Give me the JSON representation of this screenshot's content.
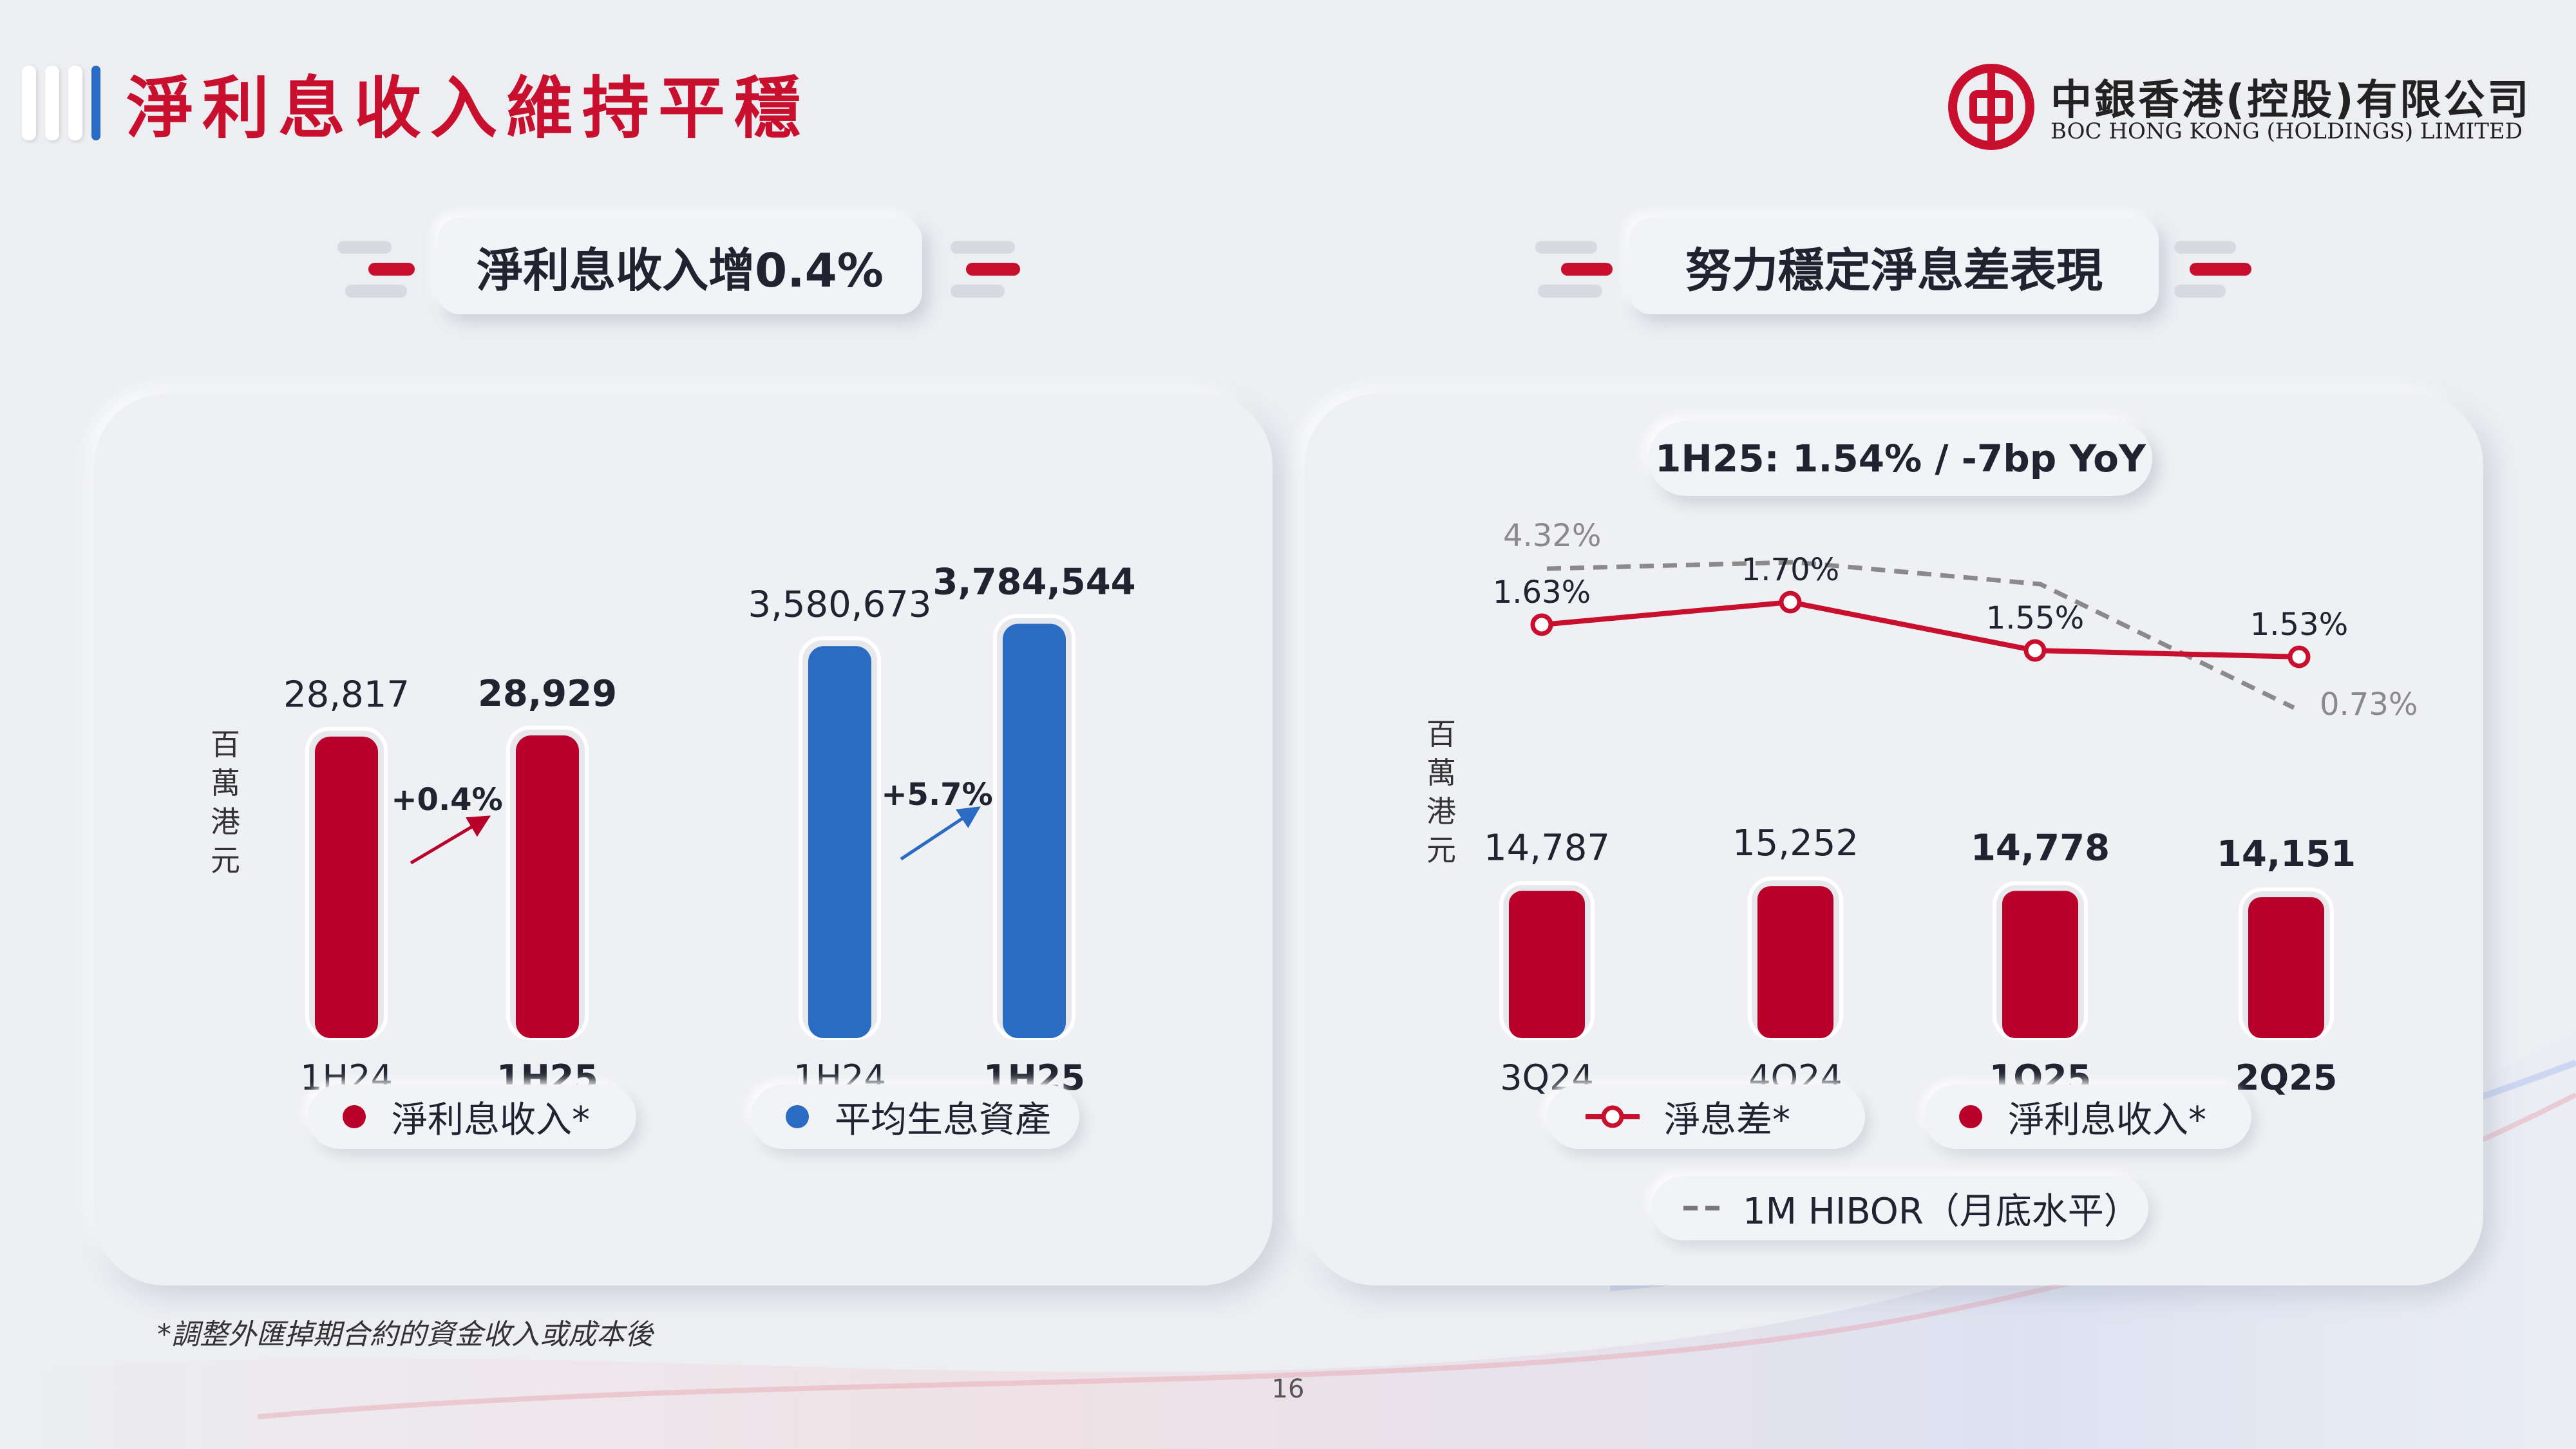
{
  "page": {
    "title": "淨利息收入維持平穩",
    "logo_cn": "中銀香港(控股)有限公司",
    "logo_en": "BOC HONG KONG (HOLDINGS) LIMITED",
    "footnote": "*調整外匯掉期合約的資金收入或成本後",
    "page_number": "16"
  },
  "left_section": {
    "heading": "淨利息收入增0.4%",
    "unit_label": "百萬港元",
    "legend": [
      {
        "label": "淨利息收入*",
        "color": "#b8002a"
      },
      {
        "label": "平均生息資產",
        "color": "#2a6bc4"
      }
    ]
  },
  "right_section": {
    "heading": "努力穩定淨息差表現",
    "badge": "1H25: 1.54% / -7bp YoY",
    "unit_label": "百萬港元",
    "legend": [
      {
        "label": "淨息差*",
        "color": "#c8102e"
      },
      {
        "label": "淨利息收入*",
        "color": "#b8002a"
      },
      {
        "label": "1M HIBOR（月底水平）",
        "color": "#777777",
        "marker": "--"
      }
    ]
  },
  "colors": {
    "red": "#b8002a",
    "blue": "#2a6bc4",
    "brand_red": "#c8102e",
    "hibor_gray": "#8a8a8a"
  },
  "chart_data": [
    {
      "type": "bar",
      "title": "",
      "ylabel": "百萬港元",
      "categories": [
        "1H24",
        "1H25"
      ],
      "series": [
        {
          "name": "淨利息收入*",
          "values": [
            28817,
            28929
          ],
          "labels": [
            "28,817",
            "28,929"
          ]
        }
      ],
      "change_label": "+0.4%",
      "ylim": [
        0,
        32000
      ]
    },
    {
      "type": "bar",
      "title": "",
      "categories": [
        "1H24",
        "1H25"
      ],
      "series": [
        {
          "name": "平均生息資產",
          "values": [
            3580673,
            3784544
          ],
          "labels": [
            "3,580,673",
            "3,784,544"
          ]
        }
      ],
      "change_label": "+5.7%",
      "ylim": [
        0,
        4000000
      ]
    },
    {
      "type": "bar",
      "title": "",
      "ylabel": "百萬港元",
      "categories": [
        "3Q24",
        "4Q24",
        "1Q25",
        "2Q25"
      ],
      "series": [
        {
          "name": "淨利息收入*",
          "values": [
            14787,
            15252,
            14778,
            14151
          ],
          "labels": [
            "14,787",
            "15,252",
            "14,778",
            "14,151"
          ]
        },
        {
          "name": "淨息差*",
          "type": "line",
          "values": [
            1.63,
            1.7,
            1.55,
            1.53
          ],
          "labels": [
            "1.63%",
            "1.70%",
            "1.55%",
            "1.53%"
          ]
        },
        {
          "name": "1M HIBOR（月底水平）",
          "type": "line",
          "style": "dashed",
          "values": [
            4.32,
            null,
            null,
            0.73
          ],
          "labels": [
            "4.32%",
            "",
            "",
            "0.73%"
          ]
        }
      ],
      "bar_ylim": [
        0,
        30000
      ]
    }
  ]
}
